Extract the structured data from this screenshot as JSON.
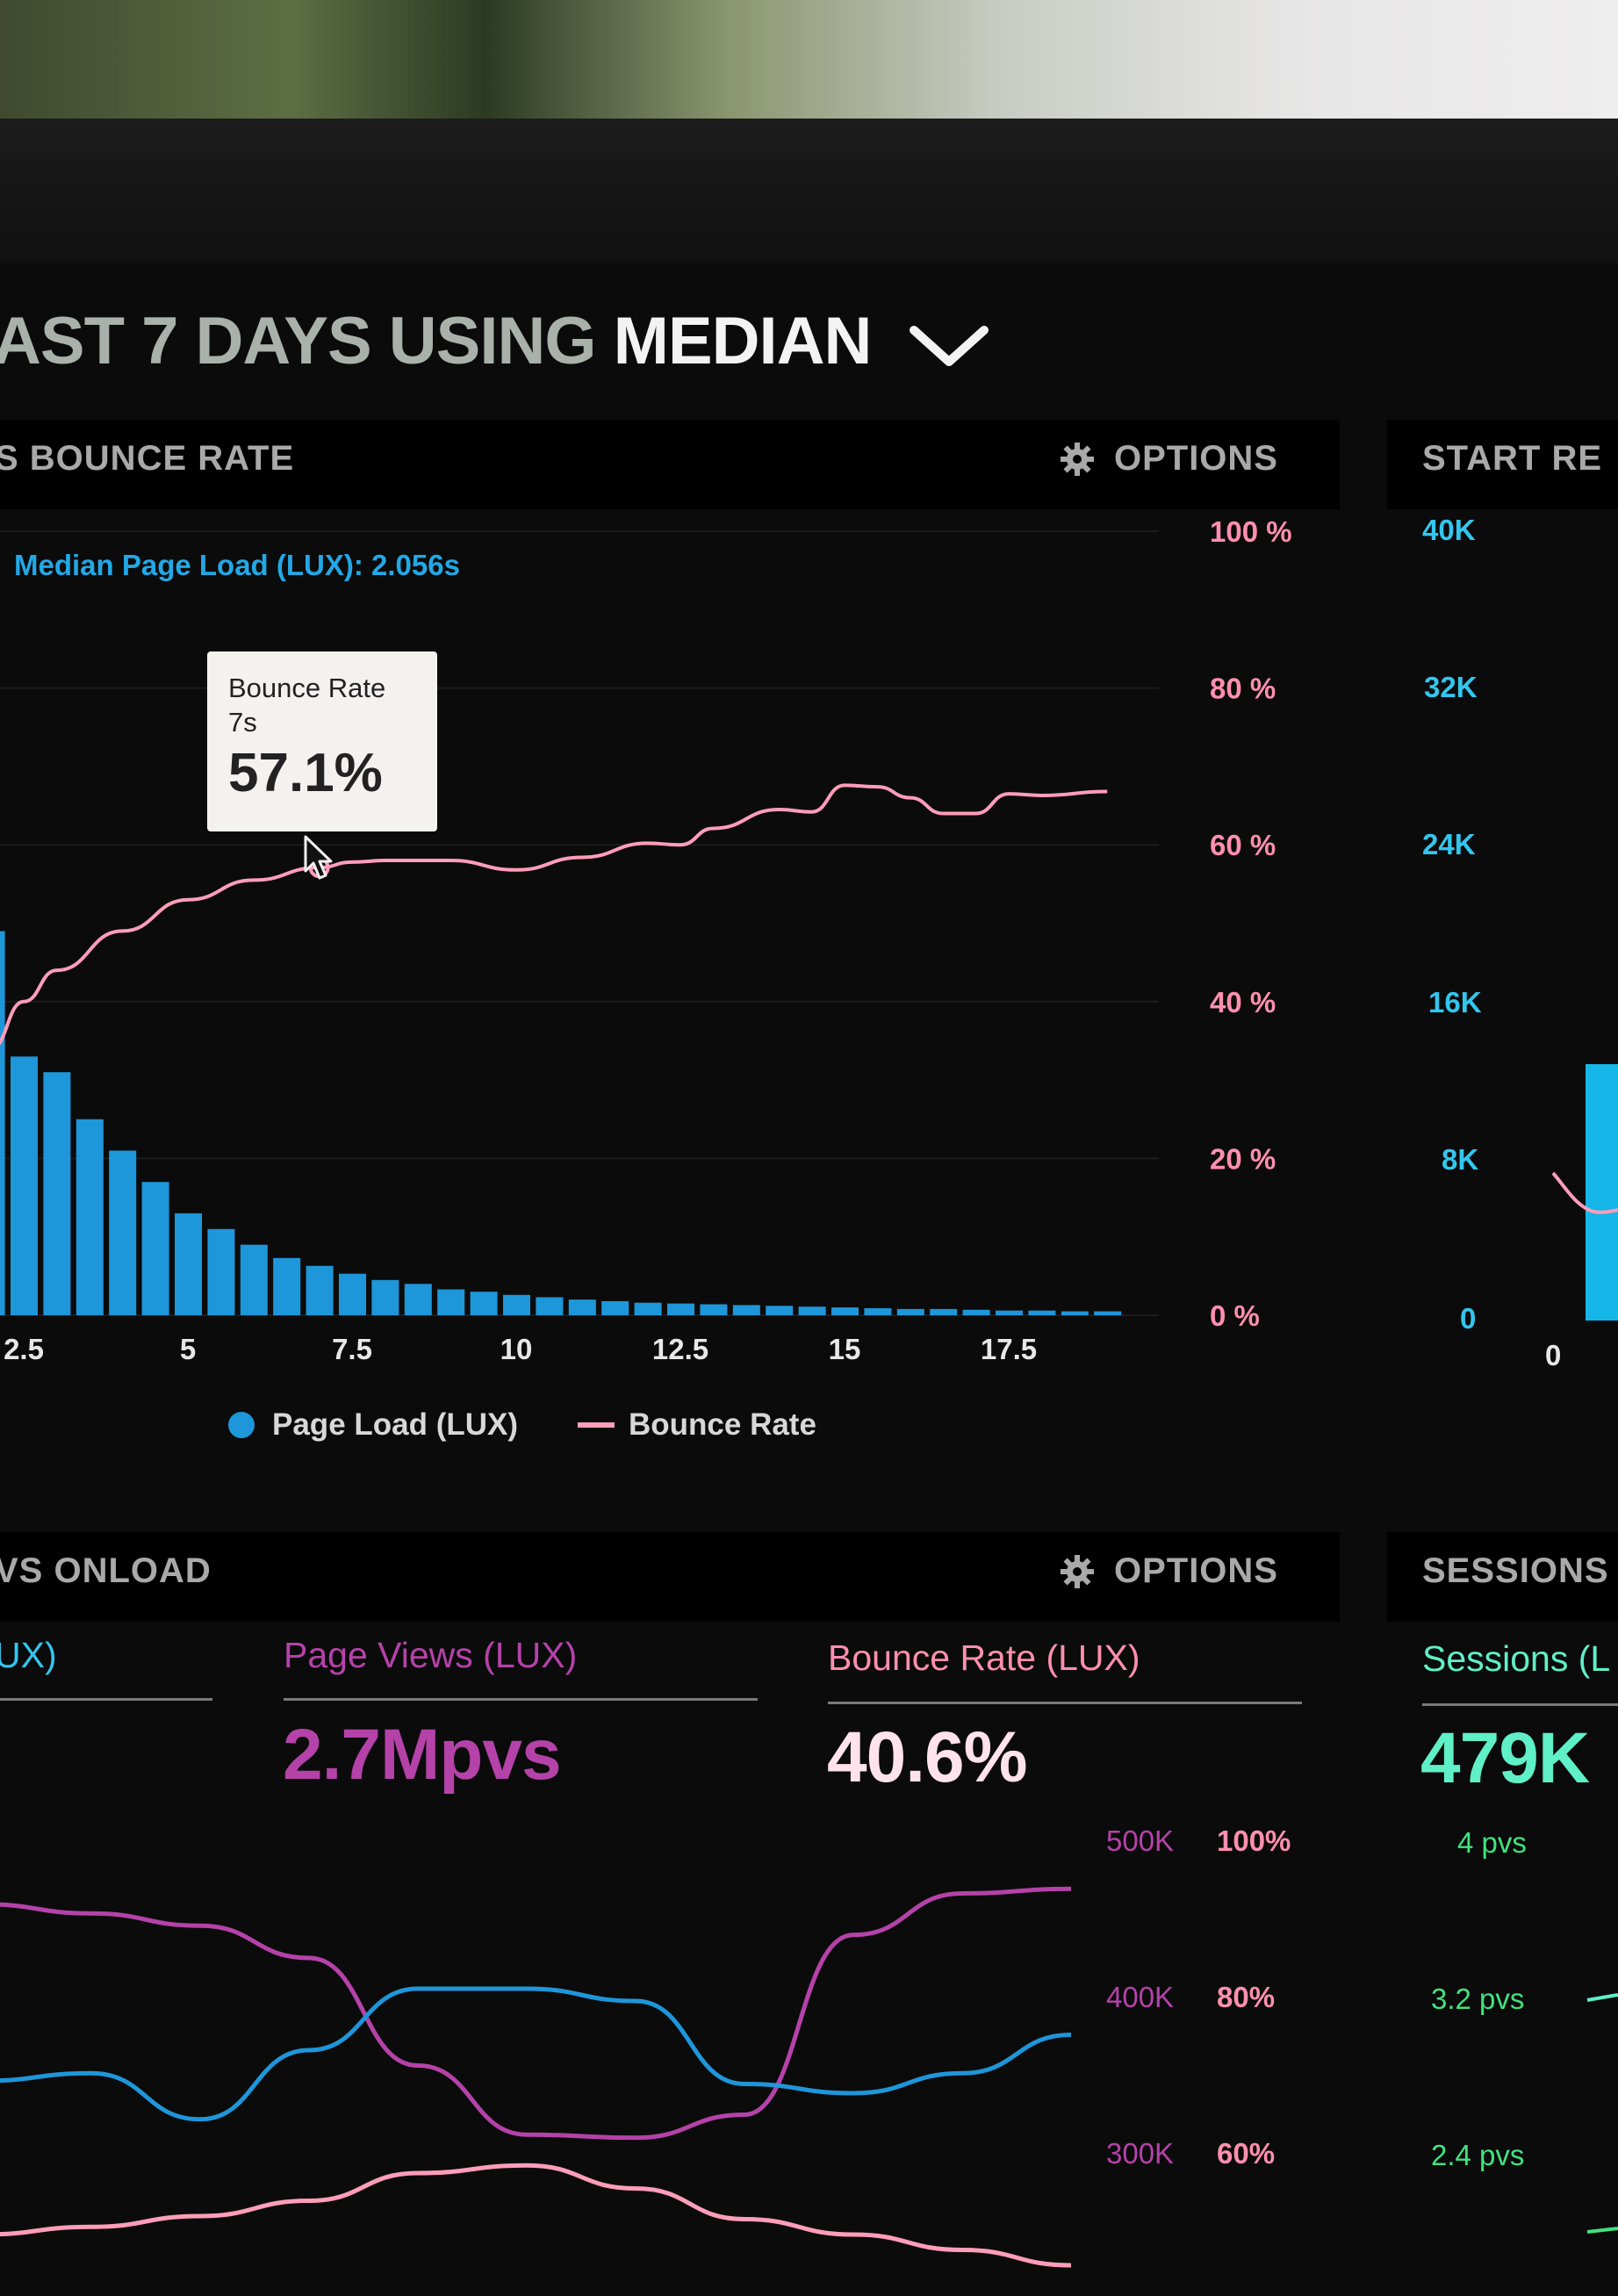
{
  "header": {
    "title_part1": "AST 7 DAYS USING ",
    "title_part2": "MEDIAN",
    "dropdown_icon": "chevron-down-icon"
  },
  "panel_bounce": {
    "title": "S BOUNCE RATE",
    "options_label": "OPTIONS",
    "options_icon": "gear-icon",
    "median_note": "Median Page Load (LUX): 2.056s",
    "tooltip": {
      "series": "Bounce Rate",
      "x": "7s",
      "value": "57.1%"
    },
    "legend": [
      "Page Load (LUX)",
      "Bounce Rate"
    ]
  },
  "panel_start": {
    "title": "START RE",
    "y_ticks": [
      "40K",
      "32K",
      "24K",
      "16K",
      "8K",
      "0"
    ],
    "x_ticks": [
      "0"
    ]
  },
  "panel_onload": {
    "title": "VS ONLOAD",
    "options_label": "OPTIONS",
    "options_icon": "gear-icon",
    "metrics": [
      {
        "label": "UX)",
        "value": ""
      },
      {
        "label": "Page Views (LUX)",
        "value": "2.7Mpvs"
      },
      {
        "label": "Bounce Rate (LUX)",
        "value": "40.6%"
      }
    ],
    "left_axis_ticks": [
      "500K",
      "400K",
      "300K"
    ],
    "right_axis_ticks": [
      "100%",
      "80%",
      "60%"
    ]
  },
  "panel_sessions": {
    "title": "SESSIONS",
    "label": "Sessions (L",
    "value": "479K",
    "axis_ticks": [
      "4 pvs",
      "3.2 pvs",
      "2.4 pvs"
    ]
  },
  "colors": {
    "bars": "#1e96da",
    "bounce_line": "#ff9dbb",
    "page_views": "#b542a9",
    "bounce_metric": "#ff8fb0",
    "sessions": "#41e37e"
  },
  "chart_data": [
    {
      "type": "bar",
      "x": [
        2,
        2.5,
        3,
        3.5,
        4,
        4.5,
        5,
        5.5,
        6,
        6.5,
        7,
        7.5,
        8,
        8.5,
        9,
        9.5,
        10,
        10.5,
        11,
        11.5,
        12,
        12.5,
        13,
        13.5,
        14,
        14.5,
        15,
        15.5,
        16,
        16.5,
        17,
        17.5,
        18,
        18.5,
        19
      ],
      "series": [
        {
          "name": "Page Load (LUX)",
          "values": [
            49,
            33,
            31,
            25,
            21,
            17,
            13,
            11,
            9,
            7.3,
            6.3,
            5.3,
            4.5,
            4,
            3.3,
            3,
            2.6,
            2.3,
            2,
            1.8,
            1.6,
            1.5,
            1.4,
            1.3,
            1.2,
            1.1,
            1,
            0.9,
            0.8,
            0.8,
            0.7,
            0.6,
            0.6,
            0.5,
            0.5
          ]
        },
        {
          "name": "Bounce Rate",
          "type": "line",
          "x": [
            2,
            2.5,
            3,
            4,
            5,
            6,
            7,
            7.5,
            8,
            9,
            10,
            11,
            12,
            12.5,
            13,
            14,
            14.5,
            15,
            15.5,
            16,
            16.5,
            17,
            17.5,
            18,
            19
          ],
          "values": [
            34,
            40,
            44,
            49,
            53,
            55.5,
            57.1,
            57.8,
            58,
            58,
            56.8,
            58.4,
            60.2,
            60,
            62.1,
            64.5,
            64.2,
            67.6,
            67.4,
            66,
            64,
            64,
            66.5,
            66.3,
            66.8
          ]
        }
      ],
      "x_ticks": [
        "2.5",
        "5",
        "7.5",
        "10",
        "12.5",
        "15",
        "17.5"
      ],
      "y_ticks_right": [
        "100 %",
        "80 %",
        "60 %",
        "40 %",
        "20 %",
        "0 %"
      ],
      "ylim_right": [
        0,
        100
      ],
      "legend_position": "bottom",
      "grid": true
    },
    {
      "type": "line",
      "x": [
        0,
        1,
        2,
        3,
        4,
        5,
        6,
        7,
        8,
        9,
        10
      ],
      "series": [
        {
          "name": "Page Views (LUX)",
          "values": [
            455,
            449,
            441,
            420,
            350,
            305,
            303,
            318,
            435,
            462,
            465
          ]
        },
        {
          "name": "Page Load (LUX)",
          "values": [
            340,
            345,
            315,
            360,
            400,
            400,
            392,
            338,
            332,
            345,
            370
          ]
        },
        {
          "name": "Bounce Rate (LUX)",
          "values": [
            240,
            245,
            252,
            262,
            280,
            285,
            270,
            250,
            240,
            230,
            220
          ]
        }
      ],
      "y_ticks_left": [
        "500K",
        "400K",
        "300K"
      ],
      "y_ticks_right": [
        "100%",
        "80%",
        "60%"
      ],
      "ylim": [
        200,
        500
      ]
    }
  ]
}
